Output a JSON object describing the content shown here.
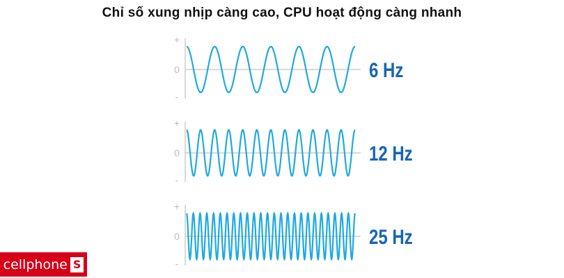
{
  "title": "Chỉ số xung nhịp càng cao, CPU hoạt động càng nhanh",
  "colors": {
    "wave": "#1ea9e0",
    "label": "#1565b8",
    "axis": "#cccccc",
    "logo_bg": "#d70018"
  },
  "axis_labels": {
    "plus": "+",
    "zero": "0",
    "minus": "-"
  },
  "panels": [
    {
      "label": "6 Hz",
      "cycles": 6
    },
    {
      "label": "12 Hz",
      "cycles": 12
    },
    {
      "label": "25 Hz",
      "cycles": 25
    }
  ],
  "logo": {
    "text": "cellphone",
    "mark": "S"
  }
}
